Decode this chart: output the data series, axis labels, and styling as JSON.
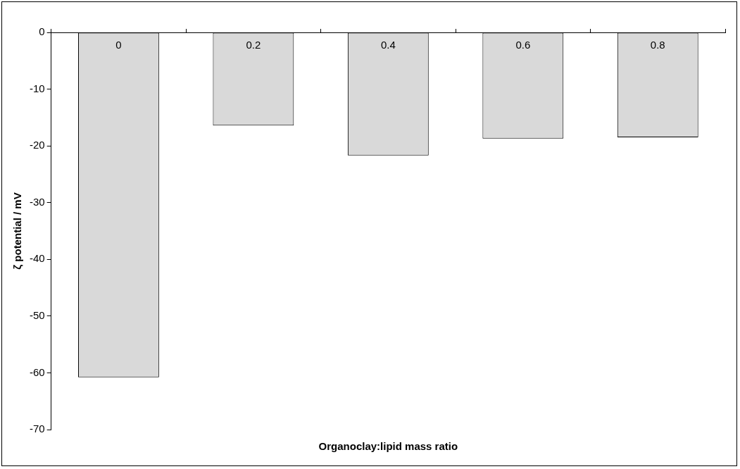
{
  "chart_data": {
    "type": "bar",
    "xlabel": "Organoclay:lipid mass ratio",
    "ylabel": "ζ potential / mV",
    "categories": [
      "0",
      "0.2",
      "0.4",
      "0.6",
      "0.8"
    ],
    "values": [
      -60.8,
      -16.4,
      -21.7,
      -18.7,
      -18.5
    ],
    "color": "#d9d9d9",
    "ylim": [
      -70,
      0
    ],
    "yticks": [
      -70,
      -60,
      -50,
      -40,
      -30,
      -20,
      -10,
      0
    ],
    "grid": false,
    "legend": false
  }
}
